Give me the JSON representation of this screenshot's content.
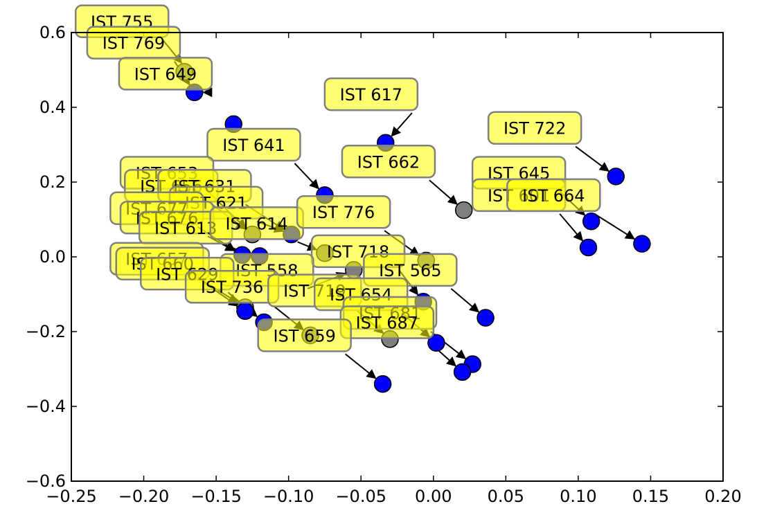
{
  "chart_data": {
    "type": "scatter",
    "title": "",
    "xlabel": "",
    "ylabel": "",
    "xlim": [
      -0.25,
      0.2
    ],
    "ylim": [
      -0.6,
      0.6
    ],
    "xticks": [
      "−0.25",
      "−0.20",
      "−0.15",
      "−0.10",
      "−0.05",
      "0.00",
      "0.05",
      "0.10",
      "0.15",
      "0.20"
    ],
    "xtick_values": [
      -0.25,
      -0.2,
      -0.15,
      -0.1,
      -0.05,
      0.0,
      0.05,
      0.1,
      0.15,
      0.2
    ],
    "yticks": [
      "−0.6",
      "−0.4",
      "−0.2",
      "0.0",
      "0.2",
      "0.4",
      "0.6"
    ],
    "ytick_values": [
      -0.6,
      -0.4,
      -0.2,
      0.0,
      0.2,
      0.4,
      0.6
    ],
    "grid": false,
    "colors": {
      "point_blue": "#0000ff",
      "point_gray": "#7f7f7f",
      "label_box": "#ffff00",
      "label_edge": "#7f7f7f",
      "arrow": "#000000"
    },
    "points": [
      {
        "x": -0.172,
        "y": 0.495,
        "color": "gray"
      },
      {
        "x": -0.165,
        "y": 0.44,
        "color": "blue"
      },
      {
        "x": -0.138,
        "y": 0.355,
        "color": "blue"
      },
      {
        "x": -0.033,
        "y": 0.305,
        "color": "blue"
      },
      {
        "x": -0.075,
        "y": 0.165,
        "color": "blue"
      },
      {
        "x": 0.021,
        "y": 0.125,
        "color": "gray"
      },
      {
        "x": 0.126,
        "y": 0.215,
        "color": "blue"
      },
      {
        "x": 0.109,
        "y": 0.095,
        "color": "blue"
      },
      {
        "x": 0.107,
        "y": 0.025,
        "color": "blue"
      },
      {
        "x": 0.144,
        "y": 0.035,
        "color": "blue"
      },
      {
        "x": -0.098,
        "y": 0.06,
        "color": "blue"
      },
      {
        "x": -0.125,
        "y": 0.06,
        "color": "gray"
      },
      {
        "x": -0.132,
        "y": 0.005,
        "color": "blue"
      },
      {
        "x": -0.12,
        "y": 0.002,
        "color": "blue"
      },
      {
        "x": -0.075,
        "y": 0.01,
        "color": "gray"
      },
      {
        "x": -0.005,
        "y": -0.01,
        "color": "gray"
      },
      {
        "x": -0.055,
        "y": -0.035,
        "color": "gray"
      },
      {
        "x": -0.13,
        "y": -0.135,
        "color": "gray"
      },
      {
        "x": -0.13,
        "y": -0.145,
        "color": "blue"
      },
      {
        "x": -0.117,
        "y": -0.175,
        "color": "blue"
      },
      {
        "x": -0.085,
        "y": -0.21,
        "color": "gray"
      },
      {
        "x": -0.03,
        "y": -0.22,
        "color": "gray"
      },
      {
        "x": -0.007,
        "y": -0.12,
        "color": "blue"
      },
      {
        "x": 0.036,
        "y": -0.163,
        "color": "blue"
      },
      {
        "x": 0.002,
        "y": -0.23,
        "color": "blue"
      },
      {
        "x": 0.027,
        "y": -0.287,
        "color": "blue"
      },
      {
        "x": 0.02,
        "y": -0.308,
        "color": "blue"
      },
      {
        "x": -0.035,
        "y": -0.34,
        "color": "blue"
      }
    ],
    "annotations": [
      {
        "text": "IST 755",
        "lx": -0.215,
        "ly": 0.63,
        "tx": -0.17,
        "ty": 0.5
      },
      {
        "text": "IST 769",
        "lx": -0.207,
        "ly": 0.573,
        "tx": -0.165,
        "ty": 0.44
      },
      {
        "text": "IST 649",
        "lx": -0.185,
        "ly": 0.49,
        "tx": -0.165,
        "ty": 0.44
      },
      {
        "text": "IST 617",
        "lx": -0.043,
        "ly": 0.435,
        "tx": -0.033,
        "ty": 0.305
      },
      {
        "text": "IST 641",
        "lx": -0.124,
        "ly": 0.3,
        "tx": -0.075,
        "ty": 0.165
      },
      {
        "text": "IST 662",
        "lx": -0.031,
        "ly": 0.255,
        "tx": 0.021,
        "ty": 0.125
      },
      {
        "text": "IST 722",
        "lx": 0.07,
        "ly": 0.345,
        "tx": 0.126,
        "ty": 0.215
      },
      {
        "text": "IST 645",
        "lx": 0.059,
        "ly": 0.225,
        "tx": 0.109,
        "ty": 0.095
      },
      {
        "text": "IST 601",
        "lx": 0.059,
        "ly": 0.165,
        "tx": 0.107,
        "ty": 0.025
      },
      {
        "text": "IST 664",
        "lx": 0.083,
        "ly": 0.165,
        "tx": 0.144,
        "ty": 0.035
      },
      {
        "text": "IST 653",
        "lx": -0.184,
        "ly": 0.225,
        "tx": -0.125,
        "ty": 0.06
      },
      {
        "text": "IST 656",
        "lx": -0.181,
        "ly": 0.19,
        "tx": -0.125,
        "ty": 0.06
      },
      {
        "text": "IST 631",
        "lx": -0.158,
        "ly": 0.19,
        "tx": -0.098,
        "ty": 0.06
      },
      {
        "text": "IST 621",
        "lx": -0.15,
        "ly": 0.145,
        "tx": -0.098,
        "ty": 0.06
      },
      {
        "text": "IST 677",
        "lx": -0.191,
        "ly": 0.13,
        "tx": -0.132,
        "ty": 0.005
      },
      {
        "text": "IST 676",
        "lx": -0.184,
        "ly": 0.105,
        "tx": -0.132,
        "ty": 0.005
      },
      {
        "text": "IST 613",
        "lx": -0.171,
        "ly": 0.078,
        "tx": -0.12,
        "ty": 0.002
      },
      {
        "text": "IST 614",
        "lx": -0.122,
        "ly": 0.09,
        "tx": -0.075,
        "ty": 0.01
      },
      {
        "text": "IST 776",
        "lx": -0.062,
        "ly": 0.12,
        "tx": -0.005,
        "ty": -0.01
      },
      {
        "text": "IST 718",
        "lx": -0.052,
        "ly": 0.015,
        "tx": -0.007,
        "ty": -0.12
      },
      {
        "text": "IST 565",
        "lx": -0.016,
        "ly": -0.035,
        "tx": 0.036,
        "ty": -0.163
      },
      {
        "text": "IST 657",
        "lx": -0.191,
        "ly": -0.005,
        "tx": -0.13,
        "ty": -0.135
      },
      {
        "text": "IST 660",
        "lx": -0.187,
        "ly": -0.018,
        "tx": -0.13,
        "ty": -0.145
      },
      {
        "text": "IST 558",
        "lx": -0.115,
        "ly": -0.035,
        "tx": -0.055,
        "ty": -0.035
      },
      {
        "text": "IST 629",
        "lx": -0.17,
        "ly": -0.045,
        "tx": -0.117,
        "ty": -0.175
      },
      {
        "text": "IST 736",
        "lx": -0.139,
        "ly": -0.08,
        "tx": -0.085,
        "ty": -0.21
      },
      {
        "text": "IST 719",
        "lx": -0.082,
        "ly": -0.09,
        "tx": -0.03,
        "ty": -0.22
      },
      {
        "text": "IST 654",
        "lx": -0.05,
        "ly": -0.1,
        "tx": 0.002,
        "ty": -0.23
      },
      {
        "text": "IST 681",
        "lx": -0.03,
        "ly": -0.15,
        "tx": 0.027,
        "ty": -0.287
      },
      {
        "text": "IST 687",
        "lx": -0.032,
        "ly": -0.175,
        "tx": 0.02,
        "ty": -0.308
      },
      {
        "text": "IST 659",
        "lx": -0.089,
        "ly": -0.21,
        "tx": -0.035,
        "ty": -0.34
      }
    ]
  }
}
